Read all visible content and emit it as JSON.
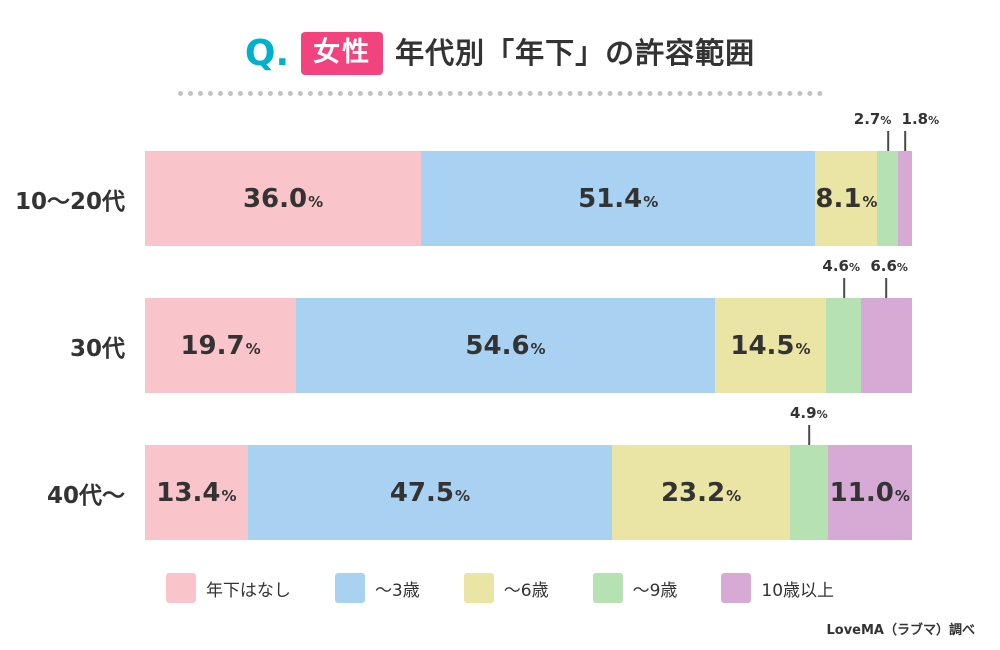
{
  "title": {
    "q": "Q.",
    "badge": "女性",
    "text": "年代別「年下」の許容範囲"
  },
  "footer": "LoveMA（ラブマ）調べ",
  "chart_data": {
    "type": "bar",
    "stacked": true,
    "orientation": "horizontal",
    "title": "Q. 女性 年代別「年下」の許容範囲",
    "value_suffix": "%",
    "categories": [
      "10〜20代",
      "30代",
      "40代〜"
    ],
    "series": [
      {
        "name": "年下はなし",
        "color": "#f9c5cb",
        "values": [
          36.0,
          19.7,
          13.4
        ]
      },
      {
        "name": "〜3歳",
        "color": "#a9d1f1",
        "values": [
          51.4,
          54.6,
          47.5
        ]
      },
      {
        "name": "〜6歳",
        "color": "#eae4a5",
        "values": [
          8.1,
          14.5,
          23.2
        ]
      },
      {
        "name": "〜9歳",
        "color": "#b6e2b3",
        "values": [
          2.7,
          4.6,
          4.9
        ]
      },
      {
        "name": "10歳以上",
        "color": "#d7aad6",
        "values": [
          1.8,
          6.6,
          11.0
        ]
      }
    ],
    "xlim": [
      0,
      100
    ],
    "legend_position": "bottom",
    "grid": false,
    "inside_label_min_pct": 7
  }
}
